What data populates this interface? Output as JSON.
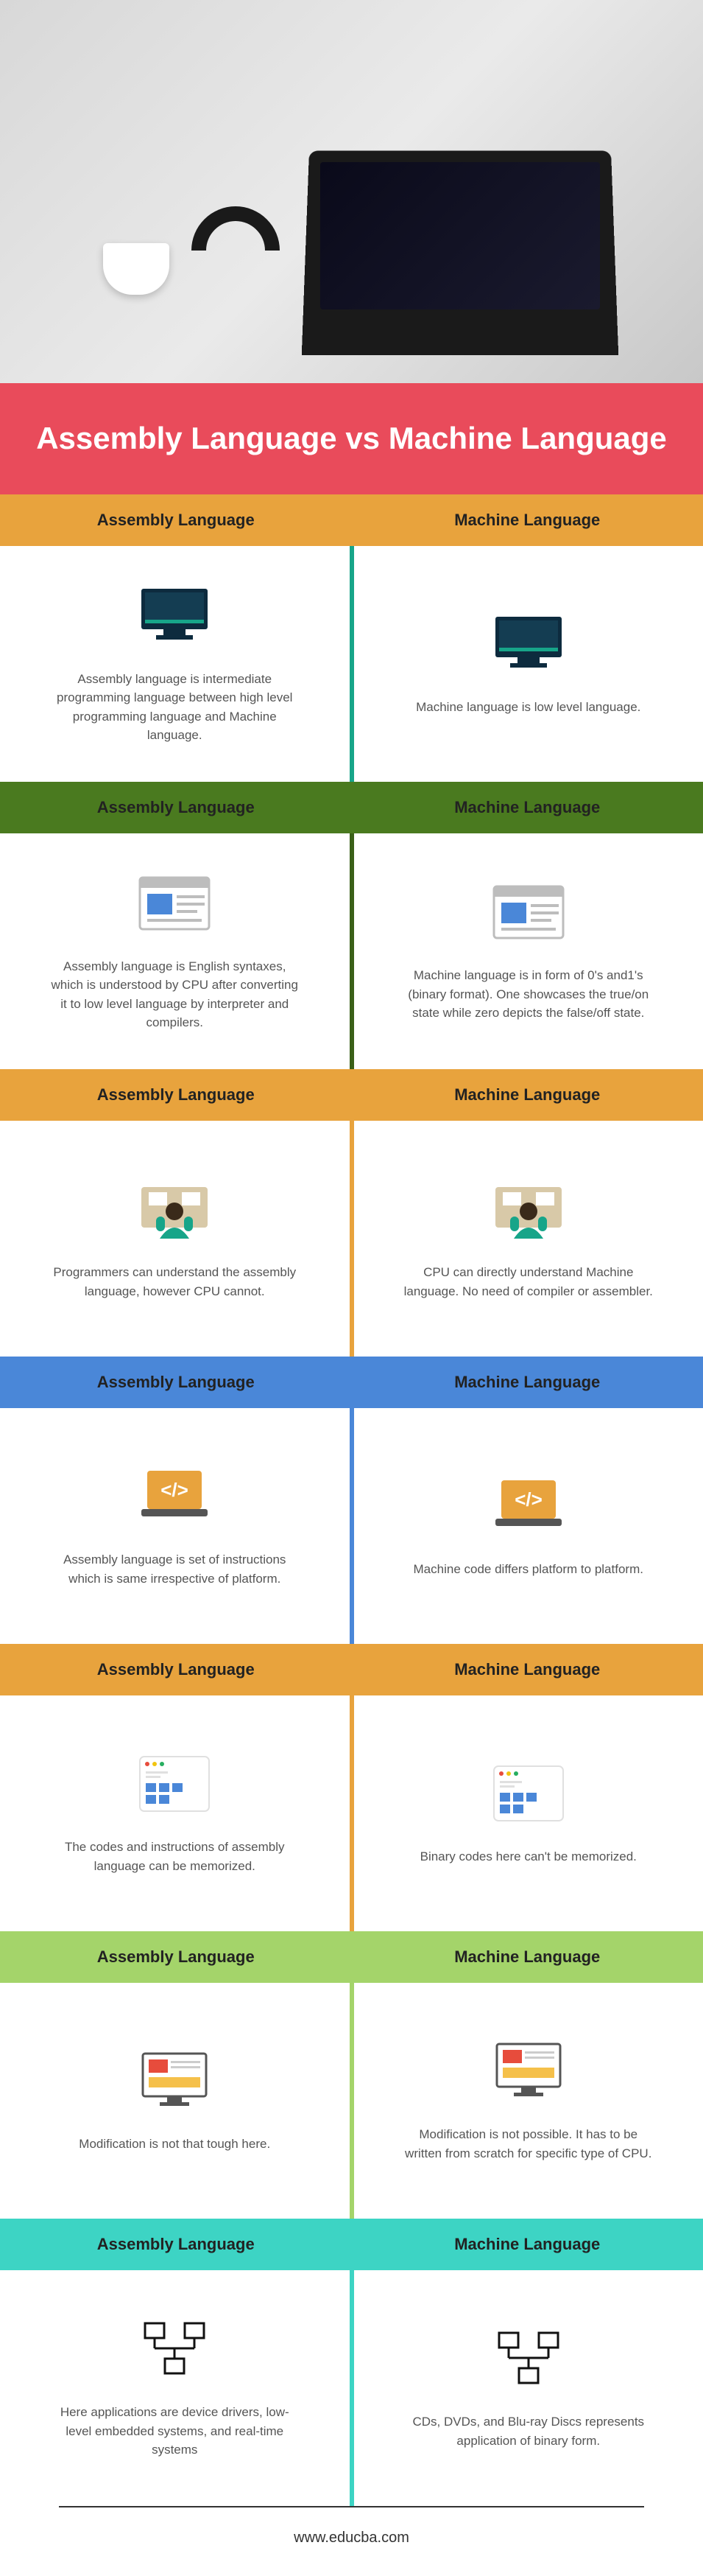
{
  "hero": {
    "alt": "laptop on desk with code"
  },
  "title": "Assembly Language vs Machine Language",
  "footer": "www.educba.com",
  "col_left_label": "Assembly Language",
  "col_right_label": "Machine Language",
  "sections": [
    {
      "header_bg": "#e8a33d",
      "divider_bg": "#17a589",
      "icon": "monitor-dark",
      "left": "Assembly language is intermediate programming language between high level programming language and Machine language.",
      "right": "Machine language is low level language."
    },
    {
      "header_bg": "#4a7a1f",
      "divider_bg": "#3a6018",
      "icon": "browser-window",
      "left": "Assembly language is English syntaxes, which is understood by CPU after converting it to low level language by interpreter and compilers.",
      "right": "Machine language is in form of 0's and1's (binary format). One showcases the true/on state while zero depicts the false/off state."
    },
    {
      "header_bg": "#e8a33d",
      "divider_bg": "#e8a33d",
      "icon": "person-desk",
      "left": "Programmers can understand the assembly language, however CPU cannot.",
      "right": "CPU can directly understand Machine language. No need of compiler or assembler."
    },
    {
      "header_bg": "#4a87d8",
      "divider_bg": "#4a87d8",
      "icon": "code-laptop",
      "left": "Assembly language is set of instructions which is same irrespective of platform.",
      "right": "Machine code differs platform to platform."
    },
    {
      "header_bg": "#e8a33d",
      "divider_bg": "#e8a33d",
      "icon": "dashboard-tiles",
      "left": "The codes and instructions of assembly language can be memorized.",
      "right": "Binary codes here can't be memorized."
    },
    {
      "header_bg": "#a4d46a",
      "divider_bg": "#a4d46a",
      "icon": "monitor-page",
      "left": "Modification is not that tough here.",
      "right": "Modification is not possible. It has to be written from scratch for specific type of CPU."
    },
    {
      "header_bg": "#3dd4c4",
      "divider_bg": "#3dd4c4",
      "icon": "network-nodes",
      "left": "Here applications are device drivers, low-level embedded systems, and real-time systems",
      "right": "CDs, DVDs, and Blu-ray Discs represents application of binary form."
    }
  ],
  "icons": {
    "monitor-dark": {
      "body": "#0d2b3e",
      "stand": "#0d2b3e",
      "accent": "#17a589"
    },
    "browser-window": {
      "frame": "#bdbdbd",
      "panel": "#4a87d8",
      "lines": "#bdbdbd"
    },
    "person-desk": {
      "desk": "#d8c9a8",
      "head": "#3a2a1a",
      "body": "#17a589"
    },
    "code-laptop": {
      "body": "#e8a33d",
      "screen": "#fff",
      "base": "#555"
    },
    "dashboard-tiles": {
      "frame": "#e0e0e0",
      "tile": "#4a87d8",
      "dot_r": "#e74c3c",
      "dot_y": "#f1c40f",
      "dot_g": "#27ae60"
    },
    "monitor-page": {
      "frame": "#555",
      "page": "#fff",
      "accent": "#e74c3c",
      "bar": "#f5c04a"
    },
    "network-nodes": {
      "stroke": "#111"
    }
  }
}
